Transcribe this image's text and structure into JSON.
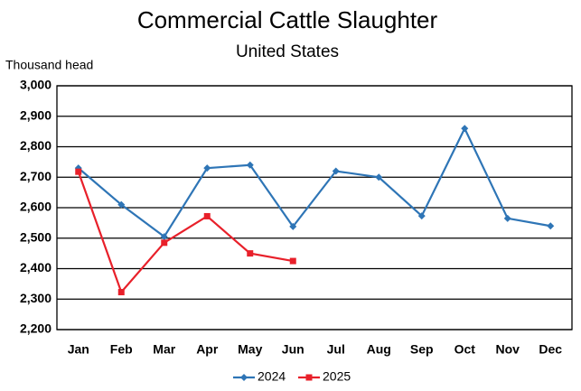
{
  "chart_data": {
    "type": "line",
    "title": "Commercial Cattle Slaughter",
    "subtitle": "United States",
    "y_label": "Thousand head",
    "categories": [
      "Jan",
      "Feb",
      "Mar",
      "Apr",
      "May",
      "Jun",
      "Jul",
      "Aug",
      "Sep",
      "Oct",
      "Nov",
      "Dec"
    ],
    "series": [
      {
        "name": "2024",
        "color": "#2e75b6",
        "marker": "diamond",
        "values": [
          2730,
          2610,
          2505,
          2730,
          2740,
          2538,
          2720,
          2700,
          2573,
          2860,
          2565,
          2540
        ]
      },
      {
        "name": "2025",
        "color": "#e8202a",
        "marker": "square",
        "values": [
          2718,
          2323,
          2485,
          2572,
          2450,
          2425,
          null,
          null,
          null,
          null,
          null,
          null
        ]
      }
    ],
    "ylim": [
      2200,
      3000
    ],
    "yticks": [
      {
        "value": 2200,
        "label": "2,200"
      },
      {
        "value": 2300,
        "label": "2,300"
      },
      {
        "value": 2400,
        "label": "2,400"
      },
      {
        "value": 2500,
        "label": "2,500"
      },
      {
        "value": 2600,
        "label": "2,600"
      },
      {
        "value": 2700,
        "label": "2,700"
      },
      {
        "value": 2800,
        "label": "2,800"
      },
      {
        "value": 2900,
        "label": "2,900"
      },
      {
        "value": 3000,
        "label": "3,000"
      }
    ],
    "grid": true,
    "legend": "bottom"
  }
}
